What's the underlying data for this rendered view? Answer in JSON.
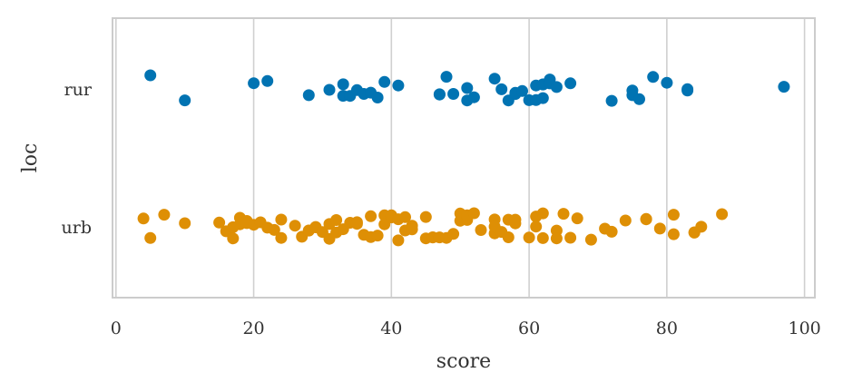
{
  "chart_data": {
    "type": "scatter",
    "title": "",
    "xlabel": "score",
    "ylabel": "loc",
    "xlim": [
      -0.5,
      101.5
    ],
    "xticks": [
      0,
      20,
      40,
      60,
      80,
      100
    ],
    "xtick_labels": [
      "0",
      "20",
      "40",
      "60",
      "80",
      "100"
    ],
    "categories": [
      "rur",
      "urb"
    ],
    "grid": "vertical",
    "legend": "none",
    "series": [
      {
        "category": "rur",
        "color": "#0173b2",
        "values": [
          5,
          10,
          20,
          22,
          28,
          31,
          33,
          33,
          34,
          35,
          36,
          37,
          38,
          39,
          41,
          47,
          47,
          48,
          49,
          51,
          51,
          52,
          55,
          56,
          57,
          58,
          58,
          59,
          60,
          61,
          61,
          62,
          62,
          62,
          63,
          63,
          64,
          66,
          72,
          75,
          75,
          76,
          78,
          80,
          83,
          83,
          97
        ]
      },
      {
        "category": "urb",
        "color": "#de8f05",
        "values": [
          4,
          5,
          7,
          10,
          15,
          16,
          17,
          17,
          18,
          18,
          19,
          19,
          20,
          21,
          22,
          23,
          24,
          24,
          26,
          27,
          28,
          28,
          29,
          29,
          30,
          31,
          31,
          32,
          32,
          33,
          34,
          35,
          35,
          36,
          37,
          37,
          38,
          39,
          39,
          40,
          40,
          41,
          41,
          42,
          42,
          43,
          43,
          45,
          45,
          46,
          46,
          47,
          48,
          49,
          50,
          50,
          51,
          51,
          52,
          53,
          55,
          55,
          55,
          56,
          57,
          57,
          58,
          58,
          60,
          61,
          61,
          62,
          62,
          64,
          64,
          65,
          66,
          67,
          69,
          71,
          72,
          74,
          77,
          77,
          79,
          81,
          81,
          84,
          84,
          85,
          88
        ]
      }
    ]
  }
}
